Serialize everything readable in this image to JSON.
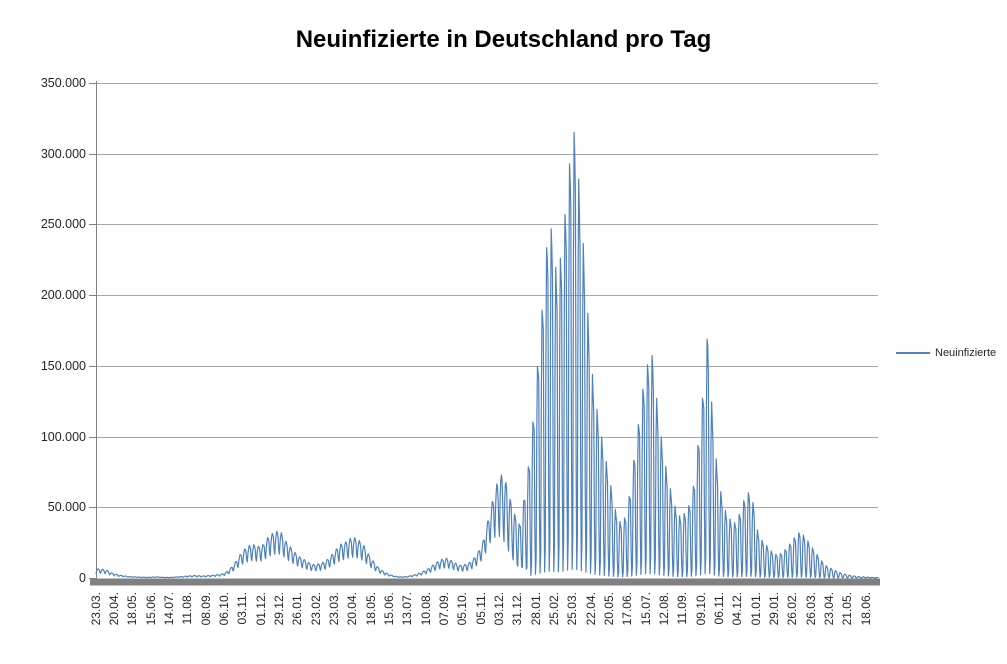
{
  "header": {
    "title": "Neuinfizierte in Deutschland pro Tag"
  },
  "legend": {
    "items": [
      {
        "label": "Neuinfizierte",
        "color": "#4F81BD"
      }
    ]
  },
  "colors": {
    "series": "#4F81BD",
    "gridline": "#A6A6A6",
    "axis": "#808080",
    "axis_bar": "#808080",
    "text": "#262626",
    "title_text": "#000000",
    "background": "#FFFFFF"
  },
  "chart_data": {
    "type": "line",
    "title": "Neuinfizierte in Deutschland pro Tag",
    "xlabel": "",
    "ylabel": "",
    "ylim": [
      0,
      350000
    ],
    "grid": true,
    "legend_position": "right",
    "y_ticks": {
      "values": [
        350000,
        300000,
        250000,
        200000,
        150000,
        100000,
        50000,
        0
      ],
      "labels": [
        "350.000",
        "300.000",
        "250.000",
        "200.000",
        "150.000",
        "100.000",
        "50.000",
        "0"
      ]
    },
    "x_ticks": {
      "interval_points": 28,
      "labels": [
        "23.03.",
        "20.04.",
        "18.05.",
        "15.06.",
        "14.07.",
        "11.08.",
        "08.09.",
        "06.10.",
        "03.11.",
        "01.12.",
        "29.12.",
        "26.01.",
        "23.02.",
        "23.03.",
        "20.04.",
        "18.05.",
        "15.06.",
        "13.07.",
        "10.08.",
        "07.09.",
        "05.10.",
        "05.11.",
        "03.12.",
        "31.12.",
        "28.01.",
        "25.02.",
        "25.03.",
        "22.04.",
        "20.05.",
        "17.06.",
        "15.07.",
        "12.08.",
        "11.09.",
        "09.10.",
        "06.11.",
        "04.12.",
        "01.01.",
        "29.01.",
        "26.02.",
        "26.03.",
        "23.04.",
        "21.05.",
        "18.06."
      ]
    },
    "series": [
      {
        "name": "Neuinfizierte",
        "color": "#4F81BD",
        "start_date": "2020-03-23",
        "frequency": "daily",
        "weekly_peak_envelope": [
          [
            "2020-03-23",
            6500
          ],
          [
            "2020-03-30",
            6300
          ],
          [
            "2020-04-06",
            5400
          ],
          [
            "2020-04-13",
            3600
          ],
          [
            "2020-04-20",
            2700
          ],
          [
            "2020-04-27",
            1900
          ],
          [
            "2020-05-04",
            1400
          ],
          [
            "2020-05-11",
            1000
          ],
          [
            "2020-05-18",
            800
          ],
          [
            "2020-05-25",
            700
          ],
          [
            "2020-06-01",
            550
          ],
          [
            "2020-06-08",
            500
          ],
          [
            "2020-06-15",
            750
          ],
          [
            "2020-06-22",
            800
          ],
          [
            "2020-06-29",
            550
          ],
          [
            "2020-07-06",
            450
          ],
          [
            "2020-07-13",
            500
          ],
          [
            "2020-07-20",
            750
          ],
          [
            "2020-07-27",
            1000
          ],
          [
            "2020-08-03",
            1250
          ],
          [
            "2020-08-10",
            1500
          ],
          [
            "2020-08-17",
            1800
          ],
          [
            "2020-08-24",
            1600
          ],
          [
            "2020-08-31",
            1450
          ],
          [
            "2020-09-07",
            1700
          ],
          [
            "2020-09-14",
            2000
          ],
          [
            "2020-09-21",
            2350
          ],
          [
            "2020-09-28",
            2800
          ],
          [
            "2020-10-05",
            4200
          ],
          [
            "2020-10-12",
            7200
          ],
          [
            "2020-10-19",
            11500
          ],
          [
            "2020-10-26",
            16500
          ],
          [
            "2020-11-02",
            20500
          ],
          [
            "2020-11-09",
            23000
          ],
          [
            "2020-11-16",
            23500
          ],
          [
            "2020-11-23",
            22500
          ],
          [
            "2020-11-30",
            23500
          ],
          [
            "2020-12-07",
            28500
          ],
          [
            "2020-12-14",
            31500
          ],
          [
            "2020-12-21",
            33000
          ],
          [
            "2020-12-28",
            32000
          ],
          [
            "2021-01-04",
            26000
          ],
          [
            "2021-01-11",
            22000
          ],
          [
            "2021-01-18",
            18000
          ],
          [
            "2021-01-25",
            15000
          ],
          [
            "2021-02-01",
            13000
          ],
          [
            "2021-02-08",
            11000
          ],
          [
            "2021-02-15",
            9500
          ],
          [
            "2021-02-22",
            10000
          ],
          [
            "2021-03-01",
            11000
          ],
          [
            "2021-03-08",
            13000
          ],
          [
            "2021-03-15",
            16500
          ],
          [
            "2021-03-22",
            20500
          ],
          [
            "2021-03-29",
            24000
          ],
          [
            "2021-04-05",
            25500
          ],
          [
            "2021-04-12",
            28000
          ],
          [
            "2021-04-19",
            28500
          ],
          [
            "2021-04-26",
            26500
          ],
          [
            "2021-05-03",
            23000
          ],
          [
            "2021-05-10",
            17000
          ],
          [
            "2021-05-17",
            12000
          ],
          [
            "2021-05-24",
            8000
          ],
          [
            "2021-05-31",
            5200
          ],
          [
            "2021-06-07",
            3400
          ],
          [
            "2021-06-14",
            2000
          ],
          [
            "2021-06-21",
            1200
          ],
          [
            "2021-06-28",
            800
          ],
          [
            "2021-07-05",
            900
          ],
          [
            "2021-07-12",
            1500
          ],
          [
            "2021-07-19",
            2200
          ],
          [
            "2021-07-26",
            3200
          ],
          [
            "2021-08-02",
            4800
          ],
          [
            "2021-08-09",
            6500
          ],
          [
            "2021-08-16",
            9000
          ],
          [
            "2021-08-23",
            11500
          ],
          [
            "2021-08-30",
            13200
          ],
          [
            "2021-09-06",
            14000
          ],
          [
            "2021-09-13",
            12500
          ],
          [
            "2021-09-20",
            10500
          ],
          [
            "2021-09-27",
            9000
          ],
          [
            "2021-10-04",
            9500
          ],
          [
            "2021-10-11",
            11000
          ],
          [
            "2021-10-18",
            14000
          ],
          [
            "2021-10-25",
            19000
          ],
          [
            "2021-11-01",
            26000
          ],
          [
            "2021-11-08",
            40000
          ],
          [
            "2021-11-15",
            54000
          ],
          [
            "2021-11-22",
            67000
          ],
          [
            "2021-11-29",
            74000
          ],
          [
            "2021-12-06",
            69000
          ],
          [
            "2021-12-13",
            56000
          ],
          [
            "2021-12-20",
            45000
          ],
          [
            "2021-12-27",
            38000
          ],
          [
            "2022-01-03",
            58000
          ],
          [
            "2022-01-10",
            82000
          ],
          [
            "2022-01-17",
            115000
          ],
          [
            "2022-01-24",
            155000
          ],
          [
            "2022-01-31",
            195000
          ],
          [
            "2022-02-07",
            240000
          ],
          [
            "2022-02-14",
            248000
          ],
          [
            "2022-02-21",
            215000
          ],
          [
            "2022-02-28",
            228000
          ],
          [
            "2022-03-07",
            262000
          ],
          [
            "2022-03-14",
            298000
          ],
          [
            "2022-03-21",
            318000
          ],
          [
            "2022-03-28",
            276000
          ],
          [
            "2022-04-04",
            230000
          ],
          [
            "2022-04-11",
            180000
          ],
          [
            "2022-04-18",
            138000
          ],
          [
            "2022-04-25",
            116000
          ],
          [
            "2022-05-02",
            97000
          ],
          [
            "2022-05-09",
            80000
          ],
          [
            "2022-05-16",
            63000
          ],
          [
            "2022-05-23",
            46000
          ],
          [
            "2022-05-30",
            39000
          ],
          [
            "2022-06-06",
            43000
          ],
          [
            "2022-06-13",
            60000
          ],
          [
            "2022-06-20",
            87000
          ],
          [
            "2022-06-27",
            112000
          ],
          [
            "2022-07-04",
            137000
          ],
          [
            "2022-07-11",
            153000
          ],
          [
            "2022-07-18",
            158000
          ],
          [
            "2022-07-25",
            122000
          ],
          [
            "2022-08-01",
            96000
          ],
          [
            "2022-08-08",
            76000
          ],
          [
            "2022-08-15",
            61000
          ],
          [
            "2022-08-22",
            49000
          ],
          [
            "2022-08-29",
            43000
          ],
          [
            "2022-09-05",
            46000
          ],
          [
            "2022-09-12",
            52000
          ],
          [
            "2022-09-19",
            67000
          ],
          [
            "2022-09-26",
            98000
          ],
          [
            "2022-10-03",
            132000
          ],
          [
            "2022-10-10",
            175000
          ],
          [
            "2022-10-17",
            116000
          ],
          [
            "2022-10-24",
            79000
          ],
          [
            "2022-10-31",
            58000
          ],
          [
            "2022-11-07",
            46000
          ],
          [
            "2022-11-14",
            41000
          ],
          [
            "2022-11-21",
            39000
          ],
          [
            "2022-11-28",
            46000
          ],
          [
            "2022-12-05",
            56000
          ],
          [
            "2022-12-12",
            61000
          ],
          [
            "2022-12-19",
            52000
          ],
          [
            "2022-12-26",
            31000
          ],
          [
            "2023-01-02",
            26000
          ],
          [
            "2023-01-09",
            22500
          ],
          [
            "2023-01-16",
            18500
          ],
          [
            "2023-01-23",
            16500
          ],
          [
            "2023-01-30",
            17500
          ],
          [
            "2023-02-06",
            20500
          ],
          [
            "2023-02-13",
            24500
          ],
          [
            "2023-02-20",
            29000
          ],
          [
            "2023-02-27",
            32500
          ],
          [
            "2023-03-06",
            30000
          ],
          [
            "2023-03-13",
            25500
          ],
          [
            "2023-03-20",
            20500
          ],
          [
            "2023-03-27",
            16000
          ],
          [
            "2023-04-03",
            11500
          ],
          [
            "2023-04-10",
            8200
          ],
          [
            "2023-04-17",
            6600
          ],
          [
            "2023-04-24",
            5000
          ],
          [
            "2023-05-01",
            3600
          ],
          [
            "2023-05-08",
            2600
          ],
          [
            "2023-05-15",
            1900
          ],
          [
            "2023-05-22",
            1400
          ],
          [
            "2023-05-29",
            1000
          ],
          [
            "2023-06-05",
            750
          ],
          [
            "2023-06-12",
            550
          ],
          [
            "2023-06-19",
            420
          ],
          [
            "2023-06-26",
            320
          ]
        ],
        "weekday_pattern_early": [
          0.52,
          0.78,
          0.92,
          1.0,
          0.96,
          0.88,
          0.6
        ],
        "weekday_pattern_late": [
          0.1,
          0.72,
          1.0,
          0.94,
          0.87,
          0.3,
          0.02
        ],
        "pattern_transition_weeks": [
          86,
          94
        ]
      }
    ]
  }
}
